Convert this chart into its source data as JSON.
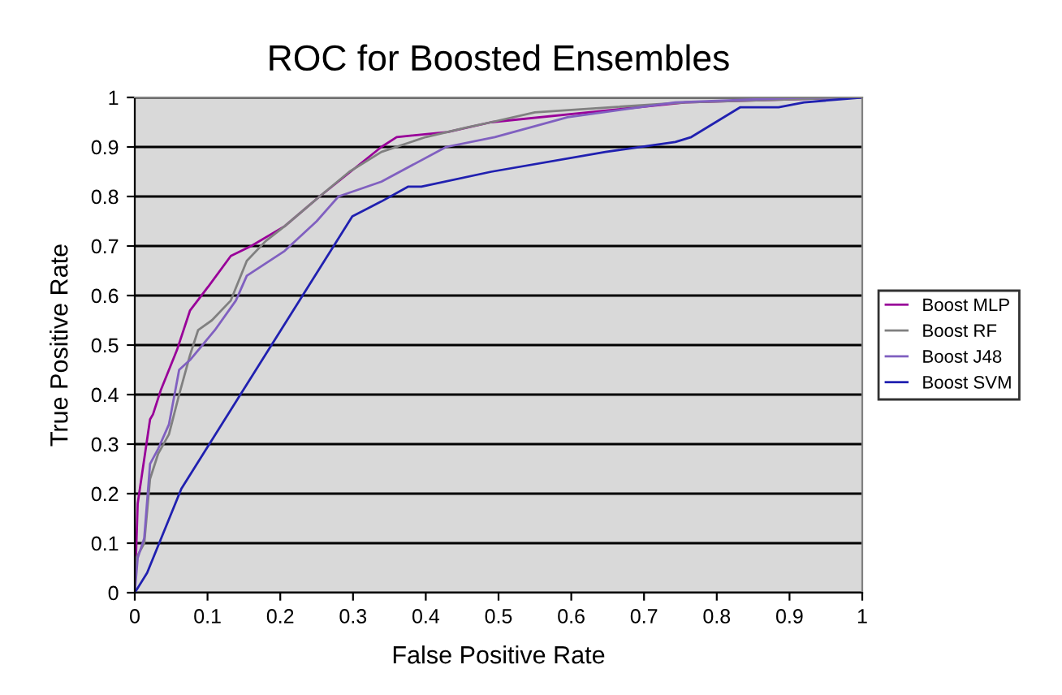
{
  "chart_data": {
    "type": "line",
    "title": "ROC for Boosted Ensembles",
    "xlabel": "False Positive Rate",
    "ylabel": "True Positive Rate",
    "xlim": [
      0,
      1
    ],
    "ylim": [
      0,
      1
    ],
    "xticks": [
      0,
      0.1,
      0.2,
      0.3,
      0.4,
      0.5,
      0.6,
      0.7,
      0.8,
      0.9,
      1
    ],
    "yticks": [
      0,
      0.1,
      0.2,
      0.3,
      0.4,
      0.5,
      0.6,
      0.7,
      0.8,
      0.9,
      1
    ],
    "grid": "y",
    "legend": "right",
    "marker": "none",
    "line_style": "solid",
    "series": [
      {
        "name": "Boost MLP",
        "color": "#990099",
        "x": [
          0,
          0.004,
          0.021,
          0.025,
          0.036,
          0.058,
          0.076,
          0.102,
          0.132,
          0.16,
          0.206,
          0.254,
          0.339,
          0.36,
          0.43,
          0.49,
          0.757,
          1
        ],
        "values": [
          0,
          0.18,
          0.35,
          0.36,
          0.41,
          0.49,
          0.57,
          0.62,
          0.68,
          0.7,
          0.74,
          0.8,
          0.9,
          0.92,
          0.93,
          0.95,
          0.99,
          1
        ]
      },
      {
        "name": "Boost RF",
        "color": "#808080",
        "x": [
          0,
          0.002,
          0.013,
          0.021,
          0.032,
          0.047,
          0.061,
          0.076,
          0.087,
          0.106,
          0.132,
          0.154,
          0.18,
          0.206,
          0.254,
          0.295,
          0.339,
          0.4,
          0.458,
          0.49,
          0.55,
          0.757,
          1
        ],
        "values": [
          0,
          0.07,
          0.1,
          0.23,
          0.28,
          0.32,
          0.4,
          0.48,
          0.53,
          0.55,
          0.59,
          0.67,
          0.71,
          0.74,
          0.8,
          0.85,
          0.89,
          0.92,
          0.94,
          0.95,
          0.97,
          0.99,
          1
        ]
      },
      {
        "name": "Boost J48",
        "color": "#8060c0",
        "x": [
          0,
          0.004,
          0.013,
          0.021,
          0.032,
          0.047,
          0.061,
          0.076,
          0.11,
          0.139,
          0.154,
          0.206,
          0.25,
          0.28,
          0.339,
          0.428,
          0.495,
          0.595,
          0.743,
          0.92,
          1
        ],
        "values": [
          0,
          0.07,
          0.11,
          0.26,
          0.29,
          0.34,
          0.45,
          0.47,
          0.53,
          0.59,
          0.64,
          0.69,
          0.75,
          0.8,
          0.83,
          0.9,
          0.92,
          0.96,
          0.99,
          1,
          1
        ]
      },
      {
        "name": "Boost SVM",
        "color": "#2020b0",
        "x": [
          0,
          0.017,
          0.064,
          0.299,
          0.339,
          0.376,
          0.394,
          0.49,
          0.647,
          0.743,
          0.765,
          0.832,
          0.885,
          0.92,
          1
        ],
        "values": [
          0,
          0.04,
          0.21,
          0.76,
          0.79,
          0.82,
          0.82,
          0.85,
          0.89,
          0.91,
          0.92,
          0.98,
          0.98,
          0.99,
          1
        ]
      }
    ]
  }
}
